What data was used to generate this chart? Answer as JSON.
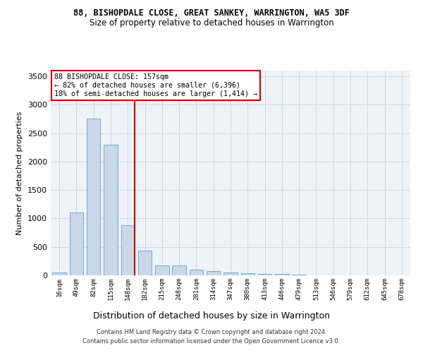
{
  "title": "88, BISHOPDALE CLOSE, GREAT SANKEY, WARRINGTON, WA5 3DF",
  "subtitle": "Size of property relative to detached houses in Warrington",
  "xlabel": "Distribution of detached houses by size in Warrington",
  "ylabel": "Number of detached properties",
  "categories": [
    "16sqm",
    "49sqm",
    "82sqm",
    "115sqm",
    "148sqm",
    "182sqm",
    "215sqm",
    "248sqm",
    "281sqm",
    "314sqm",
    "347sqm",
    "380sqm",
    "413sqm",
    "446sqm",
    "479sqm",
    "513sqm",
    "546sqm",
    "579sqm",
    "612sqm",
    "645sqm",
    "678sqm"
  ],
  "values": [
    50,
    1100,
    2750,
    2300,
    880,
    430,
    175,
    175,
    100,
    70,
    55,
    35,
    30,
    20,
    8,
    5,
    3,
    2,
    1,
    1,
    1
  ],
  "bar_color": "#c8d8e8",
  "bar_edge_color": "#5a9fd4",
  "grid_color": "#ccd8e4",
  "bg_color": "#eef3f8",
  "marker_color": "#cc0000",
  "marker_bin_index": 4,
  "annotation_text": "88 BISHOPDALE CLOSE: 157sqm\n← 82% of detached houses are smaller (6,396)\n18% of semi-detached houses are larger (1,414) →",
  "annotation_box_color": "#cc0000",
  "footer_line1": "Contains HM Land Registry data © Crown copyright and database right 2024.",
  "footer_line2": "Contains public sector information licensed under the Open Government Licence v3.0.",
  "ylim": [
    0,
    3600
  ],
  "title_fontsize": 8.5,
  "subtitle_fontsize": 8.5
}
